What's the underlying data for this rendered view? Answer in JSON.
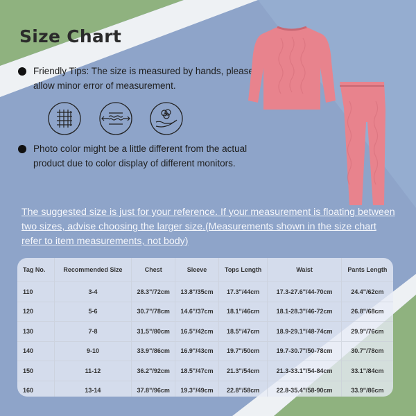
{
  "title": "Size Chart",
  "tips": [
    "Friendly Tips: The size is measured by hands, please allow minor error of measurement.",
    "Photo color might be a little different from the actual product due to color display of different monitors."
  ],
  "feature_icons": [
    "fabric-grid-icon",
    "stretch-icon",
    "cotton-hand-icon"
  ],
  "note": "The suggested size is just for your reference. If your measurement is floating between two sizes, advise choosing the larger size.(Measurements shown in the size chart refer to item measurements, not body)",
  "colors": {
    "background_blue": "#8ea4c9",
    "green": "#8fb27f",
    "product_pink": "#e8838d"
  },
  "table": {
    "headers": [
      "Tag No.",
      "Recommended Size",
      "Chest",
      "Sleeve",
      "Tops Length",
      "Waist",
      "Pants Length"
    ],
    "rows": [
      [
        "110",
        "3-4",
        "28.3\"/72cm",
        "13.8\"/35cm",
        "17.3\"/44cm",
        "17.3-27.6\"/44-70cm",
        "24.4\"/62cm"
      ],
      [
        "120",
        "5-6",
        "30.7\"/78cm",
        "14.6\"/37cm",
        "18.1\"/46cm",
        "18.1-28.3\"/46-72cm",
        "26.8\"/68cm"
      ],
      [
        "130",
        "7-8",
        "31.5\"/80cm",
        "16.5\"/42cm",
        "18.5\"/47cm",
        "18.9-29.1\"/48-74cm",
        "29.9\"/76cm"
      ],
      [
        "140",
        "9-10",
        "33.9\"/86cm",
        "16.9\"/43cm",
        "19.7\"/50cm",
        "19.7-30.7\"/50-78cm",
        "30.7\"/78cm"
      ],
      [
        "150",
        "11-12",
        "36.2\"/92cm",
        "18.5\"/47cm",
        "21.3\"/54cm",
        "21.3-33.1\"/54-84cm",
        "33.1\"/84cm"
      ],
      [
        "160",
        "13-14",
        "37.8\"/96cm",
        "19.3\"/49cm",
        "22.8\"/58cm",
        "22.8-35.4\"/58-90cm",
        "33.9\"/86cm"
      ]
    ]
  }
}
